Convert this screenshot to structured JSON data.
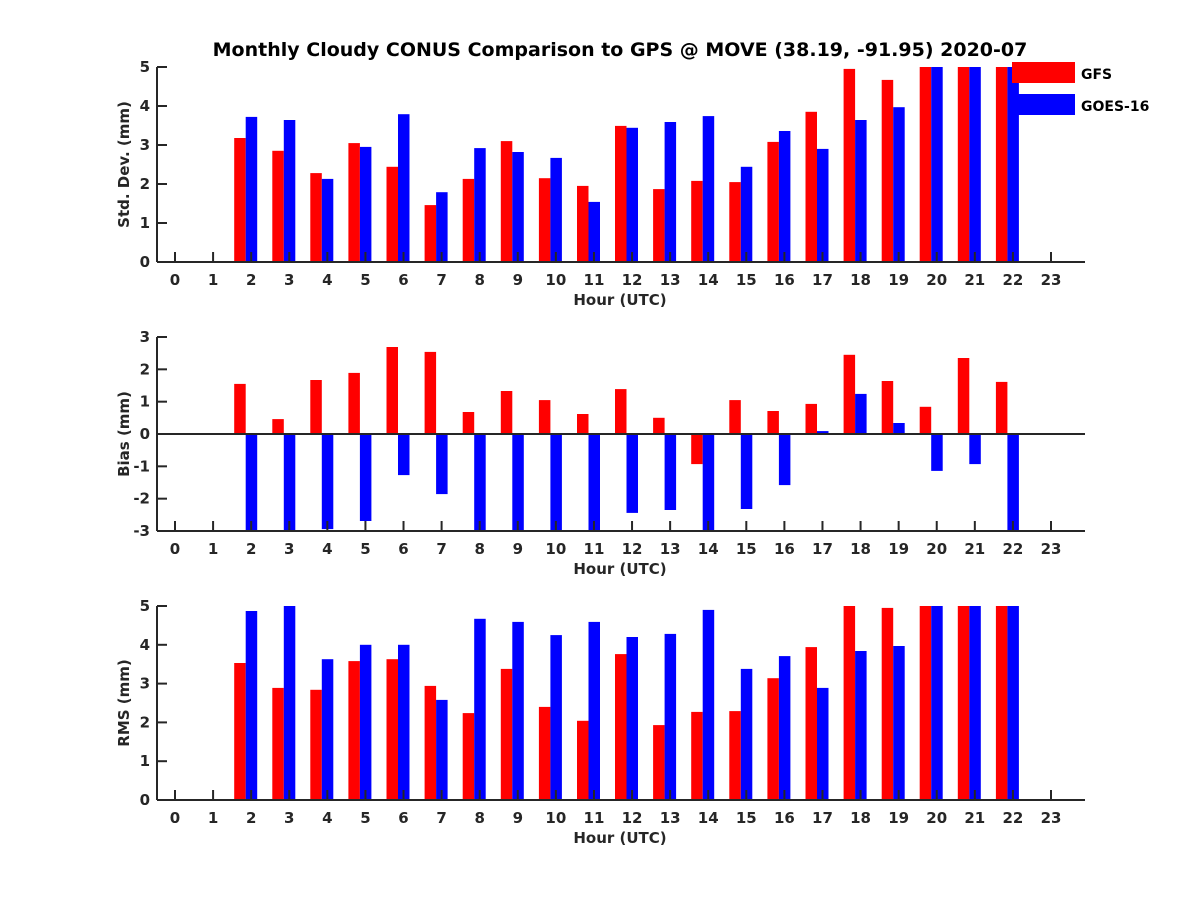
{
  "title": "Monthly Cloudy CONUS Comparison to GPS @ MOVE (38.19, -91.95) 2020-07",
  "legend": {
    "items": [
      {
        "label": "GFS",
        "color": "#ff0000"
      },
      {
        "label": "GOES-16",
        "color": "#0000ff"
      }
    ],
    "placement": "top-right"
  },
  "chart_data": [
    {
      "type": "bar",
      "id": "stddev",
      "title": "Monthly Cloudy CONUS Comparison to GPS @ MOVE (38.19, -91.95) 2020-07",
      "xlabel": "Hour (UTC)",
      "ylabel": "Std. Dev. (mm)",
      "ylim": [
        0,
        5
      ],
      "yticks": [
        0,
        1,
        2,
        3,
        4,
        5
      ],
      "xlim": [
        -0.5,
        23.9
      ],
      "categories": [
        "0",
        "1",
        "2",
        "3",
        "4",
        "5",
        "6",
        "7",
        "8",
        "9",
        "10",
        "11",
        "12",
        "13",
        "14",
        "15",
        "16",
        "17",
        "18",
        "19",
        "20",
        "21",
        "22",
        "23"
      ],
      "series": [
        {
          "name": "GFS",
          "color": "#ff0000",
          "values": [
            null,
            null,
            3.18,
            2.85,
            2.28,
            3.05,
            2.44,
            1.46,
            2.13,
            3.1,
            2.15,
            1.95,
            3.49,
            1.87,
            2.08,
            2.05,
            3.08,
            3.85,
            4.95,
            4.67,
            5.0,
            5.0,
            5.0,
            null
          ]
        },
        {
          "name": "GOES-16",
          "color": "#0000ff",
          "values": [
            null,
            null,
            3.72,
            3.64,
            2.13,
            2.95,
            3.79,
            1.79,
            2.92,
            2.82,
            2.67,
            1.54,
            3.44,
            3.59,
            3.74,
            2.44,
            3.36,
            2.9,
            3.64,
            3.97,
            5.0,
            5.0,
            5.0,
            null
          ]
        }
      ],
      "grid": false,
      "legend": "top-right"
    },
    {
      "type": "bar",
      "id": "bias",
      "title": "",
      "xlabel": "Hour (UTC)",
      "ylabel": "Bias (mm)",
      "ylim": [
        -3,
        3
      ],
      "yticks": [
        -3,
        -2,
        -1,
        0,
        1,
        2,
        3
      ],
      "xlim": [
        -0.5,
        23.9
      ],
      "zero_line": true,
      "categories": [
        "0",
        "1",
        "2",
        "3",
        "4",
        "5",
        "6",
        "7",
        "8",
        "9",
        "10",
        "11",
        "12",
        "13",
        "14",
        "15",
        "16",
        "17",
        "18",
        "19",
        "20",
        "21",
        "22",
        "23"
      ],
      "series": [
        {
          "name": "GFS",
          "color": "#ff0000",
          "values": [
            null,
            null,
            1.55,
            0.46,
            1.67,
            1.89,
            2.69,
            2.54,
            0.68,
            1.33,
            1.05,
            0.62,
            1.39,
            0.5,
            -0.93,
            1.05,
            0.71,
            0.93,
            2.45,
            1.64,
            0.84,
            2.35,
            1.61,
            null
          ]
        },
        {
          "name": "GOES-16",
          "color": "#0000ff",
          "values": [
            null,
            null,
            -3.0,
            -3.0,
            -2.94,
            -2.69,
            -1.27,
            -1.86,
            -3.0,
            -3.0,
            -3.0,
            -3.0,
            -2.44,
            -2.35,
            -3.0,
            -2.32,
            -1.58,
            0.09,
            1.24,
            0.34,
            -1.14,
            -0.93,
            -3.0,
            null
          ]
        }
      ],
      "grid": false
    },
    {
      "type": "bar",
      "id": "rms",
      "title": "",
      "xlabel": "Hour (UTC)",
      "ylabel": "RMS (mm)",
      "ylim": [
        0,
        5
      ],
      "yticks": [
        0,
        1,
        2,
        3,
        4,
        5
      ],
      "xlim": [
        -0.5,
        23.9
      ],
      "categories": [
        "0",
        "1",
        "2",
        "3",
        "4",
        "5",
        "6",
        "7",
        "8",
        "9",
        "10",
        "11",
        "12",
        "13",
        "14",
        "15",
        "16",
        "17",
        "18",
        "19",
        "20",
        "21",
        "22",
        "23"
      ],
      "series": [
        {
          "name": "GFS",
          "color": "#ff0000",
          "values": [
            null,
            null,
            3.53,
            2.89,
            2.84,
            3.58,
            3.63,
            2.94,
            2.24,
            3.38,
            2.4,
            2.04,
            3.76,
            1.93,
            2.27,
            2.29,
            3.14,
            3.94,
            5.0,
            4.95,
            5.0,
            5.0,
            5.0,
            null
          ]
        },
        {
          "name": "GOES-16",
          "color": "#0000ff",
          "values": [
            null,
            null,
            4.87,
            5.0,
            3.63,
            4.0,
            4.0,
            2.58,
            4.67,
            4.59,
            4.25,
            4.59,
            4.2,
            4.28,
            4.9,
            3.38,
            3.71,
            2.89,
            3.84,
            3.97,
            5.0,
            5.0,
            5.0,
            null
          ]
        }
      ],
      "grid": false
    }
  ]
}
